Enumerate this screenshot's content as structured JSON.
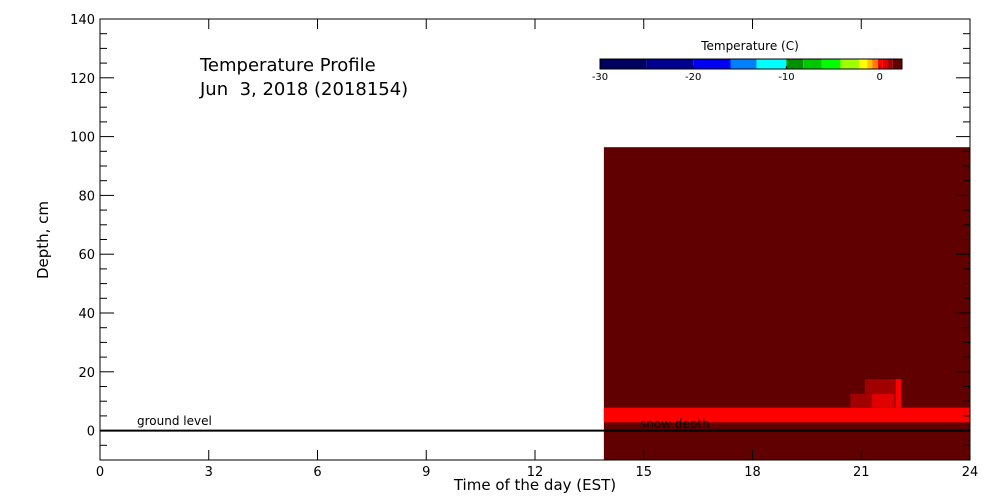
{
  "chart_data": {
    "type": "heatmap",
    "title": "Temperature Profile",
    "subtitle": "Jun  3, 2018 (2018154)",
    "xlabel": "Time of the day (EST)",
    "ylabel": "Depth, cm",
    "xlim": [
      0,
      24
    ],
    "ylim": [
      -10,
      140
    ],
    "xticks": [
      "0",
      "3",
      "6",
      "9",
      "12",
      "15",
      "18",
      "21",
      "24"
    ],
    "yticks": [
      "0",
      "20",
      "40",
      "60",
      "80",
      "100",
      "120",
      "140"
    ],
    "grid": false,
    "annotations": {
      "ground_level": "ground level",
      "snow_depth": "snow depth"
    },
    "ground_level_depth": 0,
    "colorbar": {
      "title": "Temperature (C)",
      "range": [
        -30,
        2.4
      ],
      "tick_labels": [
        "-30",
        "-20",
        "-10",
        "0"
      ],
      "tick_values": [
        -30,
        -20,
        -10,
        0
      ],
      "segments": [
        {
          "from": -30,
          "to": -25,
          "color": "#000060"
        },
        {
          "from": -25,
          "to": -20,
          "color": "#000090"
        },
        {
          "from": -20,
          "to": -16,
          "color": "#0000f0"
        },
        {
          "from": -16,
          "to": -13.2,
          "color": "#0080ff"
        },
        {
          "from": -13.2,
          "to": -10,
          "color": "#00ffff"
        },
        {
          "from": -10,
          "to": -8.2,
          "color": "#009000"
        },
        {
          "from": -8.2,
          "to": -6.2,
          "color": "#00c800"
        },
        {
          "from": -6.2,
          "to": -4.2,
          "color": "#00ff00"
        },
        {
          "from": -4.2,
          "to": -2.2,
          "color": "#a0ff00"
        },
        {
          "from": -2.2,
          "to": -1.3,
          "color": "#ffff00"
        },
        {
          "from": -1.3,
          "to": -0.8,
          "color": "#ffc000"
        },
        {
          "from": -0.8,
          "to": -0.2,
          "color": "#ff8000"
        },
        {
          "from": -0.2,
          "to": 0.35,
          "color": "#ff0000"
        },
        {
          "from": 0.35,
          "to": 0.8,
          "color": "#e00000"
        },
        {
          "from": 0.8,
          "to": 1.4,
          "color": "#a00000"
        },
        {
          "from": 1.4,
          "to": 2.4,
          "color": "#600000"
        }
      ]
    },
    "cells": [
      {
        "t0": 13.9,
        "t1": 24,
        "d0": -10,
        "d1": 96.4,
        "temp": 2.0
      },
      {
        "t0": 13.9,
        "t1": 24,
        "d0": 2.8,
        "d1": 7.8,
        "temp": 0.0
      },
      {
        "t0": 20.7,
        "t1": 22.1,
        "d0": 7.8,
        "d1": 12.5,
        "temp": 0.9
      },
      {
        "t0": 21.1,
        "t1": 22.1,
        "d0": 12.5,
        "d1": 17.5,
        "temp": 1.0
      },
      {
        "t0": 21.3,
        "t1": 21.9,
        "d0": 7.8,
        "d1": 12.5,
        "temp": 0.5
      },
      {
        "t0": 21.95,
        "t1": 22.1,
        "d0": 7.8,
        "d1": 17.5,
        "temp": 0.1
      }
    ]
  }
}
